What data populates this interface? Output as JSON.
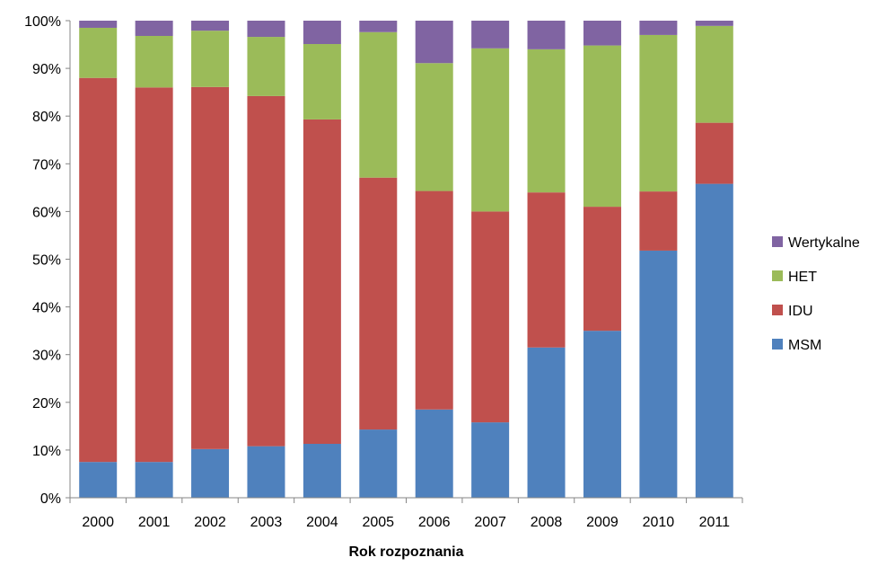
{
  "chart_data": {
    "type": "bar",
    "stacked": true,
    "percent": true,
    "categories": [
      "2000",
      "2001",
      "2002",
      "2003",
      "2004",
      "2005",
      "2006",
      "2007",
      "2008",
      "2009",
      "2010",
      "2011"
    ],
    "series": [
      {
        "name": "MSM",
        "color": "#4F81BD",
        "values": [
          7.5,
          7.5,
          10.2,
          10.8,
          11.3,
          14.3,
          18.5,
          15.8,
          31.5,
          35.0,
          51.8,
          65.8
        ]
      },
      {
        "name": "IDU",
        "color": "#C0504D",
        "values": [
          80.5,
          78.5,
          75.9,
          73.4,
          68.0,
          52.8,
          45.8,
          44.2,
          32.5,
          26.0,
          12.4,
          12.8
        ]
      },
      {
        "name": "HET",
        "color": "#9BBB59",
        "values": [
          10.5,
          10.8,
          11.8,
          12.4,
          15.8,
          30.5,
          26.8,
          34.2,
          30.0,
          33.8,
          32.8,
          20.3
        ]
      },
      {
        "name": "Wertykalne",
        "color": "#8064A2",
        "values": [
          1.5,
          3.2,
          2.1,
          3.4,
          4.9,
          2.4,
          8.9,
          5.8,
          6.0,
          5.2,
          3.0,
          1.1
        ]
      }
    ],
    "xlabel": "Rok rozpoznania",
    "ylabel": "",
    "ylim": [
      0,
      100
    ],
    "yticks": [
      "0%",
      "10%",
      "20%",
      "30%",
      "40%",
      "50%",
      "60%",
      "70%",
      "80%",
      "90%",
      "100%"
    ],
    "grid": false,
    "legend_position": "right",
    "legend_order": [
      "Wertykalne",
      "HET",
      "IDU",
      "MSM"
    ]
  }
}
